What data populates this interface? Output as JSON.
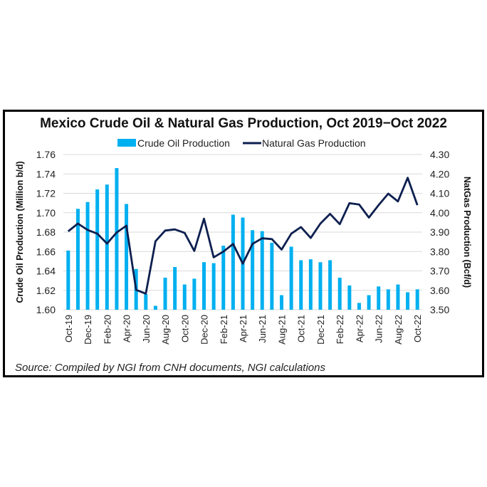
{
  "chart_data": {
    "type": "bar+line",
    "title": "Mexico Crude Oil & Natural Gas Production, Oct 2019−Oct 2022",
    "source": "Source: Compiled by NGI from CNH documents, NGI calculations",
    "legend_placement": "top",
    "grid": true,
    "categories": [
      "Oct-19",
      "Nov-19",
      "Dec-19",
      "Jan-20",
      "Feb-20",
      "Mar-20",
      "Apr-20",
      "May-20",
      "Jun-20",
      "Jul-20",
      "Aug-20",
      "Sep-20",
      "Oct-20",
      "Nov-20",
      "Dec-20",
      "Jan-21",
      "Feb-21",
      "Mar-21",
      "Apr-21",
      "May-21",
      "Jun-21",
      "Jul-21",
      "Aug-21",
      "Sep-21",
      "Oct-21",
      "Nov-21",
      "Dec-21",
      "Jan-22",
      "Feb-22",
      "Mar-22",
      "Apr-22",
      "May-22",
      "Jun-22",
      "Jul-22",
      "Aug-22",
      "Sep-22",
      "Oct-22"
    ],
    "xtick_labels": [
      "Oct-19",
      "Dec-19",
      "Feb-20",
      "Apr-20",
      "Jun-20",
      "Aug-20",
      "Oct-20",
      "Dec-20",
      "Feb-21",
      "Apr-21",
      "Jun-21",
      "Aug-21",
      "Oct-21",
      "Dec-21",
      "Feb-22",
      "Apr-22",
      "Jun-22",
      "Aug-22",
      "Oct-22"
    ],
    "left_axis": {
      "label": "Crude Oil Production (Million b/d)",
      "ylim": [
        1.6,
        1.76
      ],
      "ticks": [
        "1.60",
        "1.62",
        "1.64",
        "1.66",
        "1.68",
        "1.70",
        "1.72",
        "1.74",
        "1.76"
      ]
    },
    "right_axis": {
      "label": "NatGas Production (Bcf/d)",
      "ylim": [
        3.5,
        4.3
      ],
      "ticks": [
        "3.50",
        "3.60",
        "3.70",
        "3.80",
        "3.90",
        "4.00",
        "4.10",
        "4.20",
        "4.30"
      ]
    },
    "series": [
      {
        "name": "Crude Oil Production",
        "type": "bar",
        "axis": "left",
        "color": "#00B0F0",
        "values": [
          1.661,
          1.704,
          1.711,
          1.724,
          1.729,
          1.746,
          1.709,
          1.642,
          1.616,
          1.604,
          1.633,
          1.644,
          1.626,
          1.632,
          1.649,
          1.648,
          1.666,
          1.698,
          1.695,
          1.682,
          1.681,
          1.669,
          1.615,
          1.665,
          1.651,
          1.652,
          1.649,
          1.651,
          1.633,
          1.625,
          1.607,
          1.615,
          1.624,
          1.621,
          1.626,
          1.618,
          1.621
        ]
      },
      {
        "name": "Natural Gas Production",
        "type": "line",
        "axis": "right",
        "color": "#0D1F4F",
        "values": [
          3.904,
          3.944,
          3.911,
          3.892,
          3.841,
          3.898,
          3.933,
          3.602,
          3.583,
          3.853,
          3.908,
          3.914,
          3.896,
          3.803,
          3.969,
          3.77,
          3.8,
          3.839,
          3.737,
          3.839,
          3.868,
          3.864,
          3.81,
          3.892,
          3.926,
          3.87,
          3.944,
          3.994,
          3.941,
          4.049,
          4.042,
          3.975,
          4.039,
          4.098,
          4.058,
          4.18,
          4.039
        ]
      }
    ]
  }
}
